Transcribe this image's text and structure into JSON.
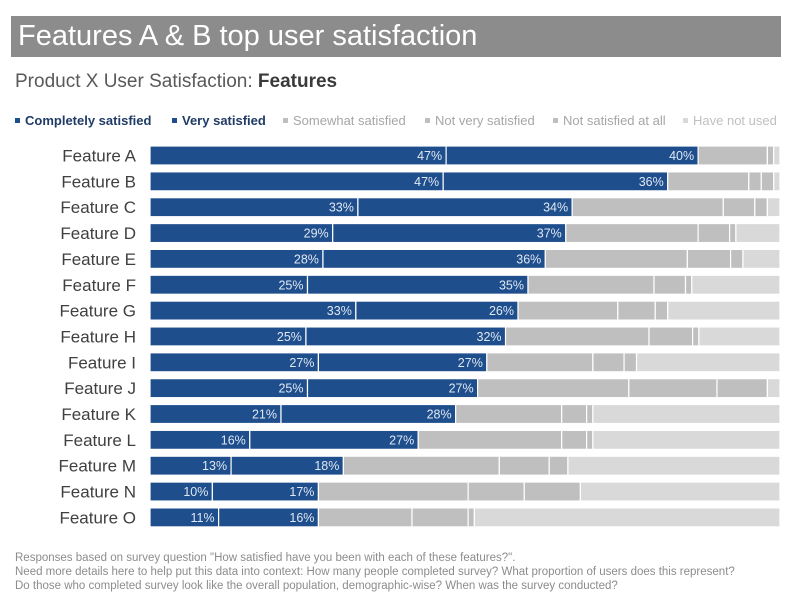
{
  "header": {
    "title": "Features A & B top user satisfaction",
    "subtitle_prefix": "Product X User Satisfaction: ",
    "subtitle_bold": "Features"
  },
  "colors": {
    "completely": "#1f4e8c",
    "very": "#1f4e8c",
    "somewhat": "#bfbfbf",
    "not_very": "#bfbfbf",
    "not_at_all": "#bfbfbf",
    "not_used": "#d9d9d9",
    "legend_dark_text": "#1f3b66",
    "legend_gray_text": "#a6a6a6",
    "legend_light_text": "#bfbfbf"
  },
  "chart_data": {
    "type": "bar",
    "orientation": "horizontal",
    "stacked": true,
    "title": "Features A & B top user satisfaction",
    "subtitle": "Product X User Satisfaction: Features",
    "xlim": [
      0,
      100
    ],
    "grid": false,
    "legend_position": "top",
    "categories": [
      "Feature A",
      "Feature B",
      "Feature C",
      "Feature D",
      "Feature E",
      "Feature F",
      "Feature G",
      "Feature H",
      "Feature I",
      "Feature J",
      "Feature K",
      "Feature L",
      "Feature M",
      "Feature N",
      "Feature O"
    ],
    "series": [
      {
        "name": "Completely satisfied",
        "values": [
          47,
          47,
          33,
          29,
          28,
          25,
          33,
          25,
          27,
          25,
          21,
          16,
          13,
          10,
          11
        ]
      },
      {
        "name": "Very satisfied",
        "values": [
          40,
          36,
          34,
          37,
          36,
          35,
          26,
          32,
          27,
          27,
          28,
          27,
          18,
          17,
          16
        ]
      },
      {
        "name": "Somewhat satisfied",
        "values": [
          11,
          13,
          24,
          21,
          23,
          20,
          16,
          23,
          17,
          24,
          17,
          23,
          25,
          24,
          15
        ]
      },
      {
        "name": "Not very satisfied",
        "values": [
          1,
          2,
          5,
          5,
          7,
          5,
          6,
          7,
          5,
          14,
          4,
          4,
          8,
          9,
          9
        ]
      },
      {
        "name": "Not satisfied at all",
        "values": [
          0,
          2,
          2,
          1,
          2,
          1,
          2,
          1,
          2,
          8,
          1,
          1,
          3,
          9,
          1
        ]
      },
      {
        "name": "Have not used",
        "values": [
          1,
          1,
          2,
          7,
          6,
          14,
          18,
          13,
          23,
          2,
          30,
          30,
          34,
          32,
          49
        ]
      }
    ]
  },
  "footnote": {
    "line1": "Responses based on survey question \"How satisfied have you been with each of these features?\".",
    "line2": "Need more details here to help put this data into context: How many people completed survey? What proportion of users does this represent?",
    "line3": "Do those who completed survey look like the overall population, demographic-wise? When was the survey conducted?"
  }
}
